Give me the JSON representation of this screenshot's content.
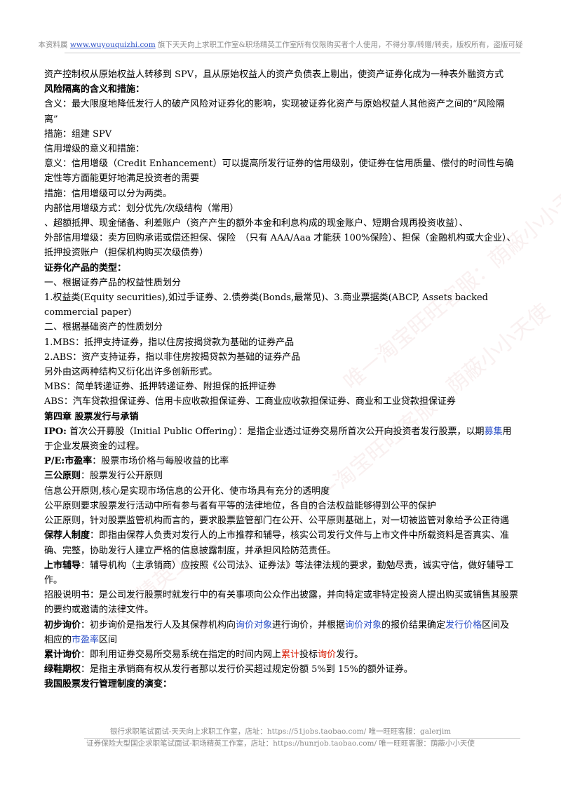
{
  "header": {
    "prefix": "本资料属 ",
    "link": "www.wuyouquizhi.com",
    "suffix": " 旗下天天向上求职工作室&职场精英工作室所有仅限购买者个人使用，不得分享/转赠/转卖，版权所有，盗版可疑"
  },
  "watermark": [
    "唯一淘宝旺旺客服：荫蔽小小天使",
    "唯一淘宝旺旺客服：荫蔽小小天使",
    "职场精英工作室出品"
  ],
  "lines": [
    "资产控制权从原始权益人转移到 SPV，且从原始权益人的资产负债表上剔出，使资产证券化成为一种表外融资方式",
    "风险隔离的含义和措施：",
    "含义：最大限度地降低发行人的破产风险对证券化的影响，实现被证券化资产与原始权益人其他资产之间的“风险隔离”",
    "措施：组建 SPV",
    "信用增级的意义和措施：",
    "意义：信用增级（Credit Enhancement）可以提高所发行证券的信用级别，使证券在信用质量、偿付的时间性与确定性等方面能更好地满足投资者的需要",
    "措施：信用增级可以分为两类。",
    "内部信用增级方式：划分优先/次级结构（常用）",
    "、超额抵押、现金储备、利差账户（资产产生的额外本金和利息构成的现金账户、短期合规再投资收益）、",
    "外部信用增级：卖方回购承诺或偿还担保、保险　（只有 AAA/Aaa 才能获 100%保险）、担保（金融机构或大企业）、抵押投资账户（担保机构购买次级债券）",
    "证券化产品的类型：",
    "一、根据证券产品的权益性质划分",
    "1.权益类(Equity securities),如过手证券、2.债券类(Bonds,最常见)、3.商业票据类(ABCP, Assets backed commercial paper)",
    "二、根据基础资产的性质划分",
    "1.MBS：抵押支持证券，指以住房按揭贷款为基础的证券产品",
    "2.ABS：资产支持证券，指以非住房按揭贷款为基础的证券产品",
    "另外由这两种结构又衍化出许多创新形式。",
    "MBS：简单转递证券、抵押转递证券、附担保的抵押证券",
    "ABS：汽车贷款担保证券、信用卡应收款担保证券、工商业应收款担保证券、商业和工业贷款担保证券",
    "第四章 股票发行与承销"
  ],
  "ipo": {
    "term": "IPO:",
    "text1": " 首次公开募股（Initial Public Offering）：是指企业透过证券交易所首次公开向投资者发行股票，以期",
    "link": "募集",
    "text2": "用于企业发展资金的过程。"
  },
  "pe": {
    "term": "P/E:市盈率",
    "text": "：股票市场价格与每股收益的比率"
  },
  "sangong": {
    "term": "三公原则",
    "text": "：股票发行公开原则",
    "l1": "信息公开原则,核心是实现市场信息的公开化、使市场具有充分的透明度",
    "l2": "公平原则要求股票发行活动中所有参与者有平等的法律地位，各自的合法权益能够得到公平的保护",
    "l3": "公正原则，针对股票监管机构而言的，要求股票监管部门在公开、公平原则基础上，对一切被监管对象给予公正待遇"
  },
  "sponsor": {
    "term": "保荐人制度",
    "text": "：即指由保荐人负责对发行人的上市推荐和辅导，核实公司发行文件与上市文件中所载资料是否真实、准确、完整，协助发行人建立严格的信息披露制度，并承担风险防范责任。"
  },
  "tutor": {
    "term": "上市辅导",
    "text": "：辅导机构（主承销商）应按照《公司法》、证券法》等法律法规的要求，勤勉尽责，诚实守信，做好辅导工作。"
  },
  "prospectus": "招股说明书：是公司发行股票时就发行中的有关事项向公众作出披露，并向特定或非特定投资人提出购买或销售其股票的要约或邀请的法律文件。",
  "inquiry": {
    "term": "初步询价",
    "t1": "：初步询价是指发行人及其保荐机构向",
    "l1": "询价对象",
    "t2": "进行询价，并根据",
    "l2": "询价对象",
    "t3": "的报价结果确定",
    "l3": "发行价格",
    "t4": "区间及相应的",
    "l4": "市盈率",
    "t5": "区间"
  },
  "cumulative": {
    "term": "累计询价",
    "t1": "：即利用证券交易所交易系统在指定的时间内网上",
    "r1": "累计",
    "t2": "投标",
    "r2": "询价",
    "t3": "发行。"
  },
  "greenshoe": {
    "term": "绿鞋期权",
    "text": "：是指主承销商有权从发行者那以发行价买超过规定份额 5%到 15%的额外证券。"
  },
  "evolution": "我国股票发行管理制度的演变：",
  "footer": {
    "line1": "银行求职笔试面试-天天向上求职工作室，店址：https://51jobs.taobao.com/ 唯一旺旺客服：galerjim",
    "line2": "证券保险大型国企求职笔试面试-职场精英工作室，店址：https://hunrjob.taobao.com/ 唯一旺旺客服：荫蔽小小天使"
  }
}
